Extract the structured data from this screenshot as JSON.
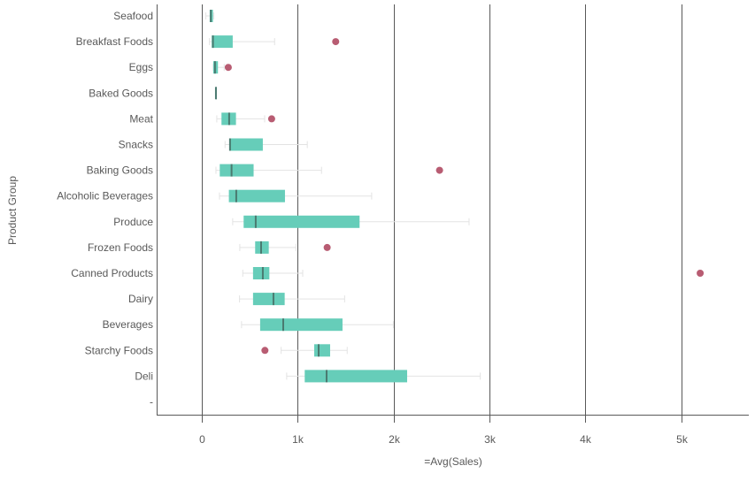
{
  "chart_data": {
    "type": "boxplot",
    "orientation": "horizontal",
    "xlabel": "=Avg(Sales)",
    "ylabel": "Product Group",
    "xlim": [
      -470,
      5705
    ],
    "x_ticks": [
      0,
      1000,
      2000,
      3000,
      4000,
      5000
    ],
    "x_tick_labels": [
      "0",
      "1k",
      "2k",
      "3k",
      "4k",
      "5k"
    ],
    "grid": "vertical",
    "colors": {
      "box": "#66cdb9",
      "median": "#4a7a70",
      "whisker": "#e3e3e3",
      "outlier": "#b85c72",
      "axis": "#595959"
    },
    "categories": [
      "Seafood",
      "Breakfast Foods",
      "Eggs",
      "Baked Goods",
      "Meat",
      "Snacks",
      "Baking Goods",
      "Alcoholic Beverages",
      "Produce",
      "Frozen Foods",
      "Canned Products",
      "Dairy",
      "Beverages",
      "Starchy Foods",
      "Deli",
      "-"
    ],
    "boxes": [
      {
        "min": 43,
        "q1": 83,
        "median": 95,
        "q3": 117,
        "max": 126,
        "outliers": []
      },
      {
        "min": 80,
        "q1": 104,
        "median": 117,
        "q3": 323,
        "max": 760,
        "outliers": [
          1397
        ]
      },
      {
        "min": 120,
        "q1": 120,
        "median": 138,
        "q3": 169,
        "max": 234,
        "outliers": [
          277
        ]
      },
      {
        "min": 148,
        "q1": 148,
        "median": 148,
        "q3": 148,
        "max": 148,
        "outliers": []
      },
      {
        "min": 157,
        "q1": 206,
        "median": 286,
        "q3": 357,
        "max": 656,
        "outliers": [
          729
        ]
      },
      {
        "min": 243,
        "q1": 289,
        "median": 295,
        "q3": 637,
        "max": 1101,
        "outliers": []
      },
      {
        "min": 148,
        "q1": 188,
        "median": 311,
        "q3": 541,
        "max": 1249,
        "outliers": [
          2480
        ]
      },
      {
        "min": 185,
        "q1": 283,
        "median": 360,
        "q3": 868,
        "max": 1772,
        "outliers": []
      },
      {
        "min": 323,
        "q1": 437,
        "median": 563,
        "q3": 1646,
        "max": 2788,
        "outliers": []
      },
      {
        "min": 397,
        "q1": 557,
        "median": 619,
        "q3": 699,
        "max": 982,
        "outliers": [
          1308
        ]
      },
      {
        "min": 428,
        "q1": 535,
        "median": 637,
        "q3": 705,
        "max": 1053,
        "outliers": [
          5198
        ]
      },
      {
        "min": 394,
        "q1": 535,
        "median": 748,
        "q3": 865,
        "max": 1490,
        "outliers": []
      },
      {
        "min": 415,
        "q1": 609,
        "median": 850,
        "q3": 1468,
        "max": 1998,
        "outliers": []
      },
      {
        "min": 828,
        "q1": 1173,
        "median": 1219,
        "q3": 1339,
        "max": 1517,
        "outliers": [
          659
        ]
      },
      {
        "min": 886,
        "q1": 1074,
        "median": 1302,
        "q3": 2142,
        "max": 2905,
        "outliers": []
      },
      null
    ]
  }
}
